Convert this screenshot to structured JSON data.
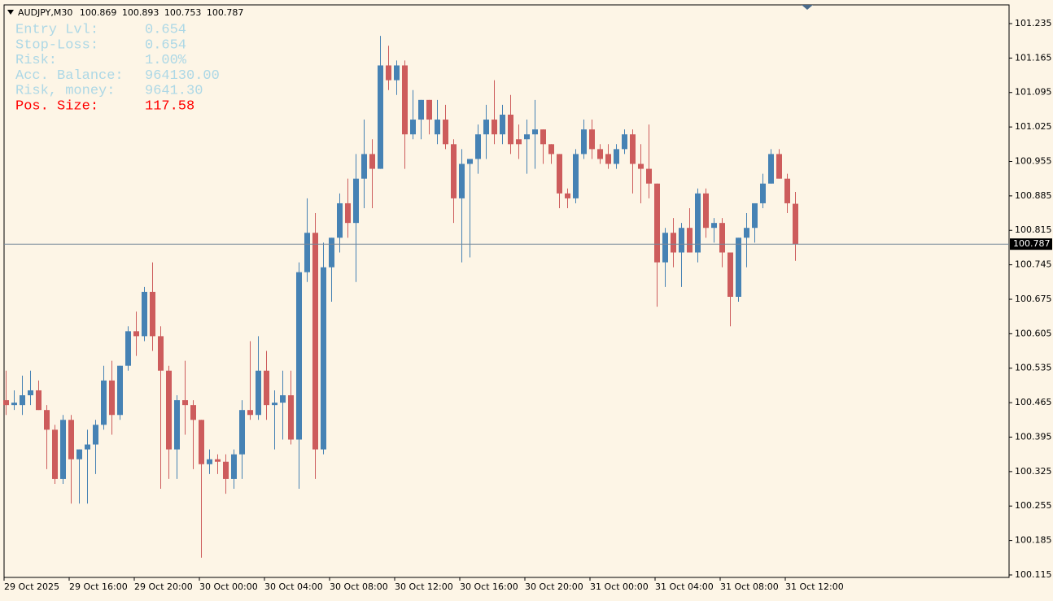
{
  "chart_data": {
    "type": "candlestick",
    "symbol": "AUDJPY,M30",
    "up_color": "#4682b4",
    "down_color": "#cd5c5c",
    "background": "#fdf5e6",
    "ylim": [
      100.11,
      101.273
    ],
    "yticks": [
      101.235,
      101.165,
      101.095,
      101.025,
      100.955,
      100.885,
      100.815,
      100.745,
      100.675,
      100.605,
      100.535,
      100.465,
      100.395,
      100.325,
      100.255,
      100.185,
      100.115
    ],
    "categories": [
      "29 Oct 2025",
      null,
      null,
      null,
      null,
      null,
      null,
      null,
      "29 Oct 16:00",
      null,
      null,
      null,
      null,
      null,
      null,
      null,
      "29 Oct 20:00",
      null,
      null,
      null,
      null,
      null,
      null,
      null,
      "30 Oct 00:00",
      null,
      null,
      null,
      null,
      null,
      null,
      null,
      "30 Oct 04:00",
      null,
      null,
      null,
      null,
      null,
      null,
      null,
      "30 Oct 08:00",
      null,
      null,
      null,
      null,
      null,
      null,
      null,
      "30 Oct 12:00",
      null,
      null,
      null,
      null,
      null,
      null,
      null,
      "30 Oct 16:00",
      null,
      null,
      null,
      null,
      null,
      null,
      null,
      "30 Oct 20:00",
      null,
      null,
      null,
      null,
      null,
      null,
      null,
      "31 Oct 00:00",
      null,
      null,
      null,
      null,
      null,
      null,
      null,
      "31 Oct 04:00",
      null,
      null,
      null,
      null,
      null,
      null,
      null,
      "31 Oct 08:00",
      null,
      null,
      null,
      null,
      null,
      null,
      null,
      "31 Oct 12:00",
      null
    ],
    "open": [
      100.47,
      100.46,
      100.46,
      100.48,
      100.49,
      100.45,
      100.41,
      100.31,
      100.43,
      100.35,
      100.37,
      100.38,
      100.42,
      100.51,
      100.44,
      100.54,
      100.61,
      100.6,
      100.69,
      100.6,
      100.53,
      100.37,
      100.47,
      100.46,
      100.43,
      100.34,
      100.35,
      100.345,
      100.31,
      100.36,
      100.45,
      100.44,
      100.53,
      100.46,
      100.465,
      100.48,
      100.39,
      100.73,
      100.81,
      100.37,
      100.74,
      100.8,
      100.87,
      100.83,
      100.92,
      100.97,
      100.94,
      101.15,
      101.12,
      101.15,
      101.01,
      101.04,
      101.08,
      101.01,
      101.04,
      100.99,
      100.88,
      100.95,
      100.96,
      101.01,
      101.04,
      101.01,
      101.05,
      101.0,
      101.0,
      101.01,
      101.02,
      100.99,
      100.97,
      100.89,
      100.88,
      100.97,
      101.02,
      100.98,
      100.97,
      100.95,
      100.98,
      101.01,
      100.95,
      100.94,
      100.91,
      100.75,
      100.81,
      100.77,
      100.82,
      100.77,
      100.89,
      100.82,
      100.83,
      100.77,
      100.68,
      100.8,
      100.82,
      100.87,
      100.91,
      100.97,
      100.92,
      100.869
    ],
    "high": [
      100.53,
      100.49,
      100.52,
      100.53,
      100.51,
      100.46,
      100.42,
      100.44,
      100.44,
      100.37,
      100.41,
      100.43,
      100.54,
      100.55,
      100.54,
      100.62,
      100.65,
      100.7,
      100.75,
      100.62,
      100.54,
      100.48,
      100.55,
      100.47,
      100.43,
      100.37,
      100.36,
      100.36,
      100.37,
      100.47,
      100.59,
      100.6,
      100.57,
      100.49,
      100.53,
      100.53,
      100.75,
      100.88,
      100.85,
      100.79,
      100.8,
      100.89,
      100.92,
      100.97,
      101.04,
      101.0,
      101.21,
      101.19,
      101.16,
      101.16,
      101.1,
      101.08,
      101.08,
      101.08,
      101.07,
      101.0,
      100.98,
      100.96,
      101.03,
      101.07,
      101.12,
      101.07,
      101.09,
      101.03,
      101.04,
      101.08,
      101.02,
      100.99,
      100.97,
      100.9,
      100.98,
      101.04,
      101.04,
      100.99,
      100.99,
      100.99,
      101.02,
      101.02,
      100.99,
      101.03,
      100.91,
      100.82,
      100.84,
      100.83,
      100.86,
      100.9,
      100.9,
      100.84,
      100.84,
      100.77,
      100.8,
      100.85,
      100.87,
      100.93,
      100.98,
      100.98,
      100.93,
      100.893
    ],
    "low": [
      100.44,
      100.45,
      100.44,
      100.46,
      100.45,
      100.33,
      100.3,
      100.3,
      100.26,
      100.26,
      100.26,
      100.32,
      100.41,
      100.4,
      100.43,
      100.53,
      100.56,
      100.59,
      100.57,
      100.29,
      100.31,
      100.31,
      100.4,
      100.33,
      100.15,
      100.32,
      100.32,
      100.28,
      100.29,
      100.31,
      100.43,
      100.43,
      100.43,
      100.37,
      100.39,
      100.38,
      100.29,
      100.71,
      100.31,
      100.36,
      100.67,
      100.77,
      100.8,
      100.71,
      100.86,
      100.86,
      100.94,
      101.1,
      101.09,
      100.94,
      101.0,
      101.0,
      101.01,
      100.99,
      100.98,
      100.83,
      100.75,
      100.76,
      100.93,
      100.96,
      100.99,
      100.99,
      100.97,
      100.96,
      100.93,
      100.94,
      100.95,
      100.95,
      100.86,
      100.86,
      100.87,
      100.96,
      100.96,
      100.95,
      100.94,
      100.94,
      100.97,
      100.89,
      100.87,
      100.88,
      100.66,
      100.7,
      100.74,
      100.7,
      100.77,
      100.75,
      100.8,
      100.79,
      100.74,
      100.62,
      100.67,
      100.74,
      100.79,
      100.86,
      100.91,
      100.92,
      100.85,
      100.753
    ],
    "close": [
      100.46,
      100.465,
      100.48,
      100.49,
      100.45,
      100.41,
      100.31,
      100.43,
      100.35,
      100.37,
      100.38,
      100.42,
      100.51,
      100.44,
      100.54,
      100.61,
      100.6,
      100.69,
      100.6,
      100.53,
      100.37,
      100.47,
      100.46,
      100.43,
      100.34,
      100.35,
      100.345,
      100.31,
      100.36,
      100.45,
      100.44,
      100.53,
      100.46,
      100.465,
      100.48,
      100.39,
      100.73,
      100.81,
      100.37,
      100.74,
      100.8,
      100.87,
      100.83,
      100.92,
      100.97,
      100.94,
      101.15,
      101.12,
      101.15,
      101.01,
      101.04,
      101.08,
      101.04,
      101.04,
      100.99,
      100.88,
      100.95,
      100.96,
      101.01,
      101.04,
      101.01,
      101.05,
      100.99,
      100.99,
      101.01,
      101.02,
      100.99,
      100.97,
      100.89,
      100.88,
      100.97,
      101.02,
      100.98,
      100.96,
      100.95,
      100.98,
      101.01,
      100.95,
      100.94,
      100.91,
      100.75,
      100.81,
      100.77,
      100.82,
      100.77,
      100.89,
      100.82,
      100.83,
      100.77,
      100.68,
      100.8,
      100.82,
      100.87,
      100.91,
      100.97,
      100.92,
      100.87,
      100.787
    ],
    "info_panel": [
      {
        "label": "Entry Lvl:",
        "value": "0.654",
        "color": "#add8e6"
      },
      {
        "label": "Stop-Loss:",
        "value": "0.654",
        "color": "#add8e6"
      },
      {
        "label": "Risk:",
        "value": "1.00%",
        "color": "#add8e6"
      },
      {
        "label": "Acc. Balance:",
        "value": "964130.00",
        "color": "#add8e6"
      },
      {
        "label": "Risk, money:",
        "value": "9641.30",
        "color": "#add8e6"
      },
      {
        "label": "Pos. Size:",
        "value": "117.58",
        "color": "#ff0000"
      }
    ]
  }
}
